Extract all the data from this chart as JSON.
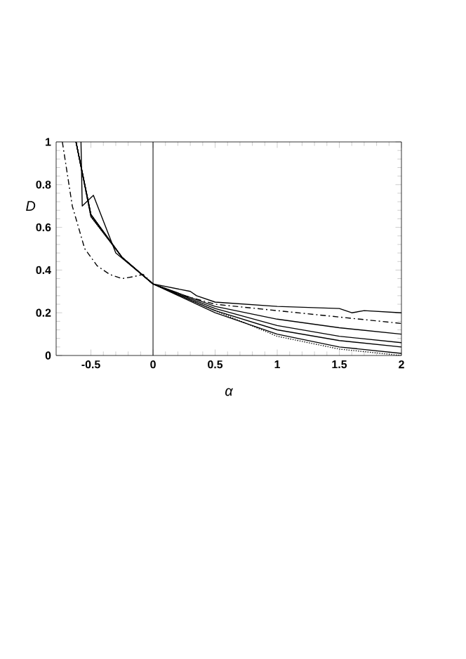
{
  "chart_data": {
    "type": "line",
    "xlabel": "α",
    "ylabel": "D",
    "xlim": [
      -0.78,
      2
    ],
    "ylim": [
      0,
      1
    ],
    "xticks": [
      -0.5,
      0,
      0.5,
      1,
      1.5,
      2
    ],
    "yticks": [
      0,
      0.2,
      0.4,
      0.6,
      0.8,
      1
    ],
    "marker": "none",
    "ref_lines": [
      {
        "axis": "x",
        "value": 0,
        "color": "#000000"
      }
    ],
    "series": [
      {
        "color": "#000000",
        "line_style": "solid",
        "x": [
          -0.58,
          -0.57,
          -0.48,
          -0.3,
          0,
          0.3,
          0.35,
          0.5,
          1,
          1.5,
          1.6,
          1.7,
          2
        ],
        "values": [
          1,
          0.7,
          0.75,
          0.48,
          0.335,
          0.3,
          0.28,
          0.25,
          0.23,
          0.22,
          0.2,
          0.21,
          0.2
        ]
      },
      {
        "color": "#000000",
        "line_style": "dashed",
        "x": [
          -0.73,
          -0.65,
          -0.55,
          -0.45,
          -0.35,
          -0.25,
          -0.15,
          -0.08,
          0,
          0.25,
          0.5,
          1,
          1.5,
          2
        ],
        "values": [
          1,
          0.7,
          0.5,
          0.42,
          0.38,
          0.36,
          0.37,
          0.38,
          0.335,
          0.28,
          0.24,
          0.21,
          0.18,
          0.15
        ]
      },
      {
        "color": "#000000",
        "line_style": "solid",
        "x": [
          -0.62,
          -0.5,
          -0.25,
          0,
          0.5,
          1,
          1.5,
          2
        ],
        "values": [
          1,
          0.66,
          0.46,
          0.335,
          0.23,
          0.17,
          0.13,
          0.1
        ]
      },
      {
        "color": "#000000",
        "line_style": "solid",
        "x": [
          -0.62,
          -0.5,
          -0.25,
          0,
          0.5,
          1,
          1.5,
          2
        ],
        "values": [
          1,
          0.66,
          0.46,
          0.335,
          0.22,
          0.14,
          0.09,
          0.06
        ]
      },
      {
        "color": "#000000",
        "line_style": "solid",
        "x": [
          -0.62,
          -0.5,
          -0.25,
          0,
          0.5,
          1,
          1.5,
          2
        ],
        "values": [
          1,
          0.66,
          0.46,
          0.335,
          0.21,
          0.12,
          0.07,
          0.04
        ]
      },
      {
        "color": "#000000",
        "line_style": "solid",
        "x": [
          -0.62,
          -0.5,
          -0.25,
          0,
          0.5,
          1,
          1.5,
          2
        ],
        "values": [
          1,
          0.65,
          0.46,
          0.335,
          0.2,
          0.1,
          0.04,
          0.01
        ]
      },
      {
        "color": "#000000",
        "line_style": "dotted",
        "x": [
          -0.62,
          -0.5,
          -0.25,
          0,
          0.5,
          1,
          1.5,
          2
        ],
        "values": [
          1,
          0.65,
          0.46,
          0.335,
          0.21,
          0.09,
          0.03,
          0
        ]
      }
    ]
  }
}
